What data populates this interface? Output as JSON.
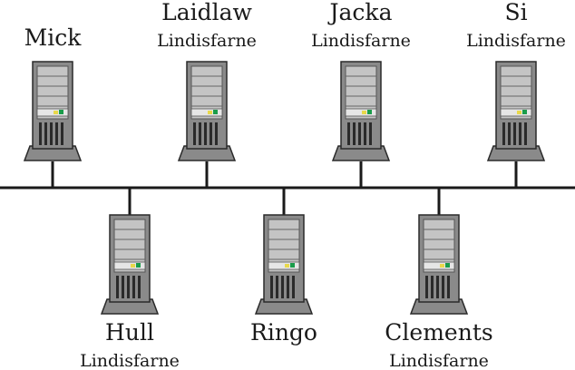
{
  "diagram": {
    "type": "network-bus",
    "colors": {
      "line": "#1a1a1a",
      "tower_face": "#bdbdbd",
      "tower_dark": "#8a8a8a",
      "tower_outline": "#2a2a2a",
      "led_green": "#1a9c4a",
      "led_yellow": "#e8d84a"
    },
    "top_nodes": [
      {
        "name": "Mick",
        "group": ""
      },
      {
        "name": "Laidlaw",
        "group": "Lindisfarne"
      },
      {
        "name": "Jacka",
        "group": "Lindisfarne"
      },
      {
        "name": "Si",
        "group": "Lindisfarne"
      }
    ],
    "bottom_nodes": [
      {
        "name": "Hull",
        "group": "Lindisfarne"
      },
      {
        "name": "Ringo",
        "group": ""
      },
      {
        "name": "Clements",
        "group": "Lindisfarne"
      }
    ]
  }
}
